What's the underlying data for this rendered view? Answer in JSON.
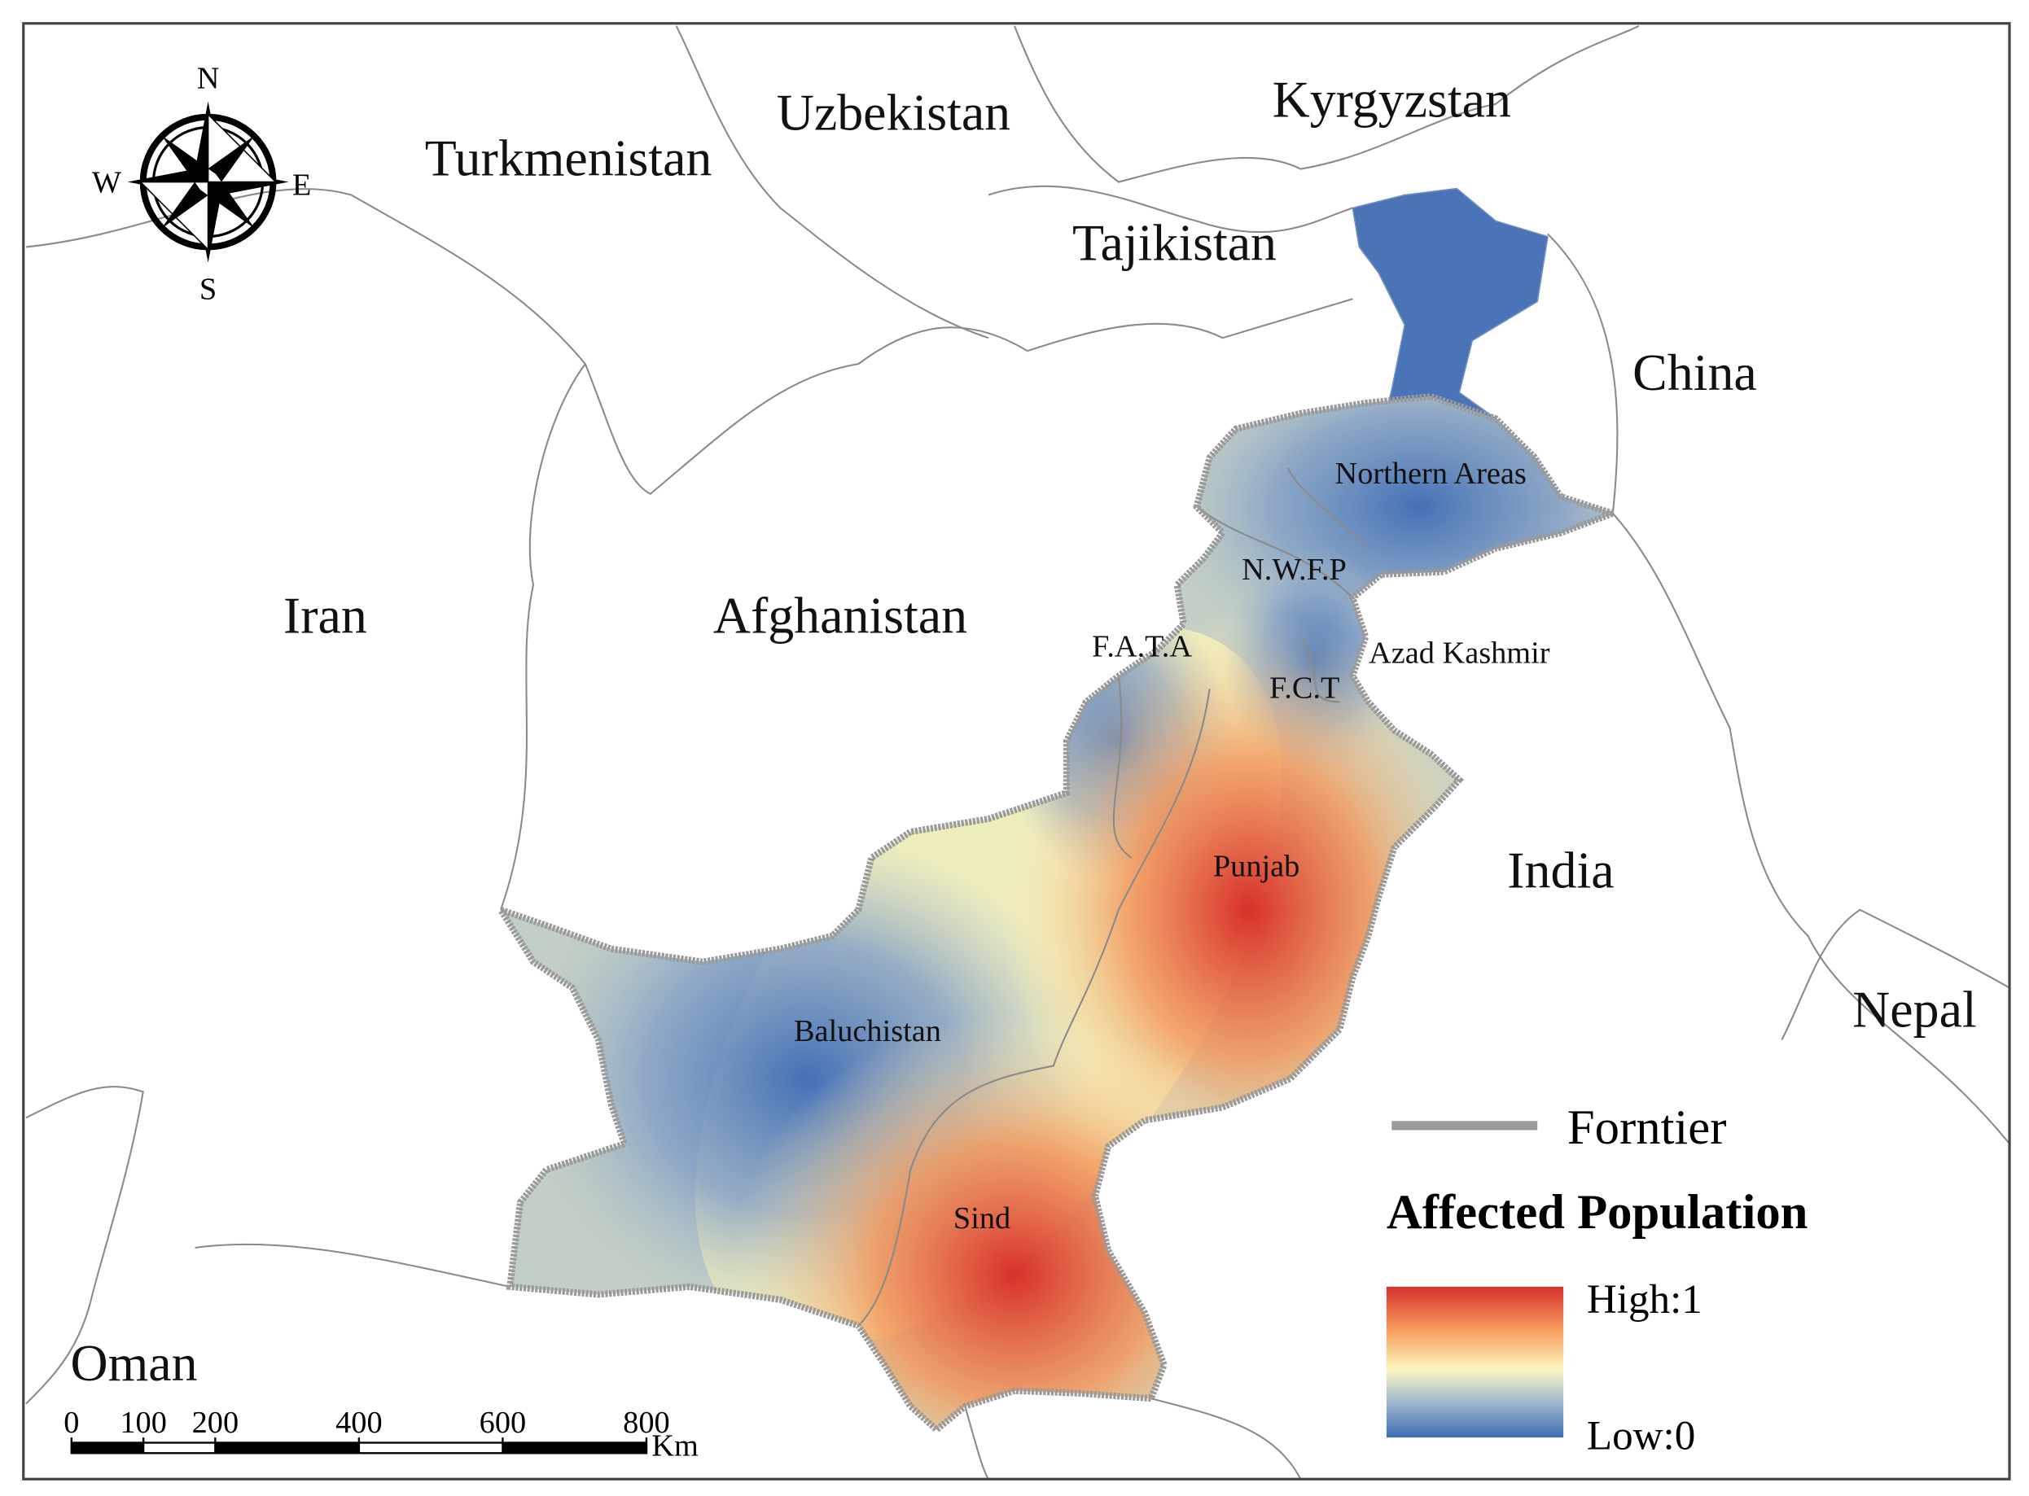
{
  "map": {
    "compass": {
      "n": "N",
      "s": "S",
      "w": "W",
      "e": "E"
    },
    "countries": [
      "Turkmenistan",
      "Uzbekistan",
      "Kyrgyzstan",
      "Tajikistan",
      "China",
      "Iran",
      "Afghanistan",
      "India",
      "Nepal",
      "Oman"
    ],
    "provinces": [
      "Northern Areas",
      "N.W.F.P",
      "F.A.T.A",
      "Azad Kashmir",
      "F.C.T",
      "Punjab",
      "Baluchistan",
      "Sind"
    ],
    "scale": {
      "ticks": [
        0,
        100,
        200,
        400,
        600,
        800
      ],
      "unit": "Km"
    },
    "legend": {
      "frontier": "Forntier",
      "title": "Affected Population",
      "high": "High:1",
      "low": "Low:0"
    }
  }
}
